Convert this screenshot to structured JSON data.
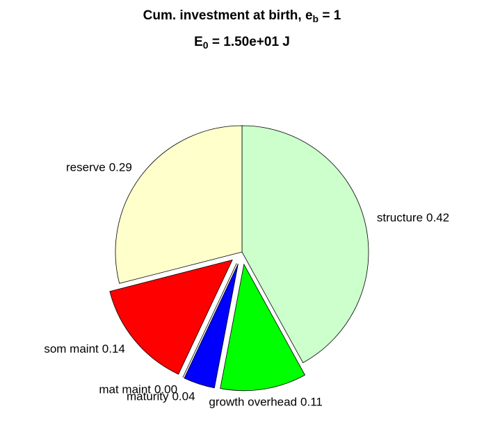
{
  "chart_data": {
    "type": "pie",
    "title_lines": [
      [
        "Cum. investment at birth, e",
        "b",
        " = 1"
      ],
      [
        "E",
        "0",
        " = 1.50e+01 J"
      ]
    ],
    "categories": [
      "structure",
      "growth overhead",
      "maturity",
      "mat maint",
      "som maint",
      "reserve"
    ],
    "values": [
      0.42,
      0.11,
      0.04,
      0.0,
      0.14,
      0.29
    ],
    "value_labels": [
      "0.42",
      "0.11",
      "0.04",
      "0.00",
      "0.14",
      "0.29"
    ],
    "colors": [
      "#ccffcc",
      "#00ff00",
      "#0000ff",
      "#ff00ff",
      "#ff0000",
      "#ffffcc"
    ],
    "explode": [
      0,
      1,
      1,
      1,
      1,
      0
    ]
  }
}
